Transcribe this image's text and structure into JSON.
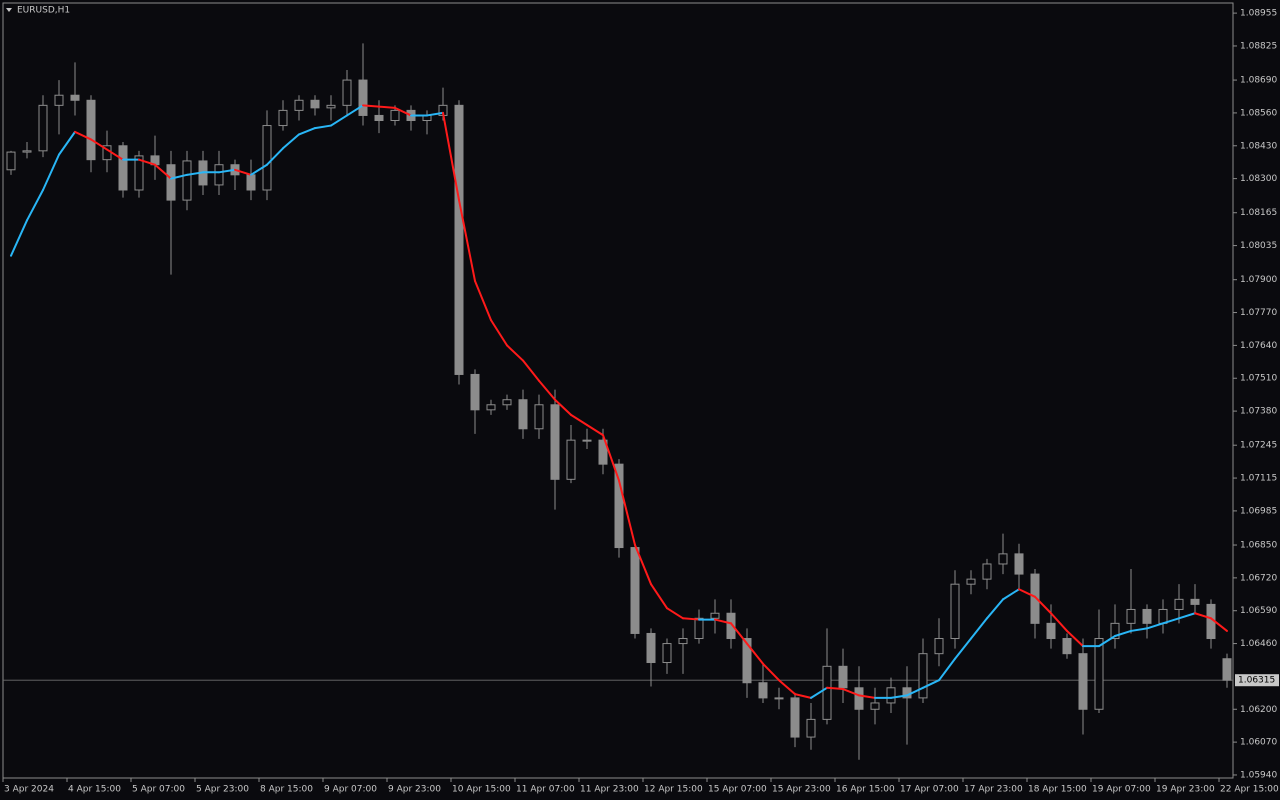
{
  "chart_data": {
    "type": "candlestick",
    "title": "EURUSD,H1",
    "categories": [
      "3 Apr 2024",
      null,
      null,
      null,
      "4 Apr 15:00",
      null,
      null,
      null,
      "5 Apr 07:00",
      null,
      null,
      null,
      "5 Apr 23:00",
      null,
      null,
      null,
      "8 Apr 15:00",
      null,
      null,
      null,
      "9 Apr 07:00",
      null,
      null,
      null,
      "9 Apr 23:00",
      null,
      null,
      null,
      "10 Apr 15:00",
      null,
      null,
      null,
      "11 Apr 07:00",
      null,
      null,
      null,
      "11 Apr 23:00",
      null,
      null,
      null,
      "12 Apr 15:00",
      null,
      null,
      null,
      "15 Apr 07:00",
      null,
      null,
      null,
      "15 Apr 23:00",
      null,
      null,
      null,
      "16 Apr 15:00",
      null,
      null,
      null,
      "17 Apr 07:00",
      null,
      null,
      null,
      "17 Apr 23:00",
      null,
      null,
      null,
      "18 Apr 15:00",
      null,
      null,
      null,
      "19 Apr 07:00",
      null,
      null,
      null,
      "19 Apr 23:00",
      null,
      null,
      null,
      "22 Apr 15:00"
    ],
    "open": [
      1.08335,
      1.08405,
      1.0841,
      1.0859,
      1.0863,
      1.0861,
      1.08375,
      1.0843,
      1.08255,
      1.0839,
      1.08355,
      1.08215,
      1.0837,
      1.08275,
      1.08355,
      1.08315,
      1.08255,
      1.0851,
      1.0857,
      1.0861,
      1.0858,
      1.0859,
      1.0869,
      1.0855,
      1.0853,
      1.0857,
      1.0853,
      1.0855,
      1.0859,
      1.07525,
      1.07385,
      1.07405,
      1.07425,
      1.0731,
      1.07405,
      1.0711,
      1.07265,
      1.07265,
      1.0717,
      1.0684,
      1.065,
      1.06385,
      1.0646,
      1.0648,
      1.0656,
      1.0658,
      1.0648,
      1.06305,
      1.06245,
      1.06245,
      1.0609,
      1.0616,
      1.0637,
      1.06285,
      1.062,
      1.06225,
      1.06285,
      1.06245,
      1.0642,
      1.0648,
      1.06695,
      1.06715,
      1.06775,
      1.06815,
      1.06735,
      1.0654,
      1.0648,
      1.0642,
      1.062,
      1.0648,
      1.0654,
      1.06595,
      1.0654,
      1.06595,
      1.06635,
      1.06615,
      1.064
    ],
    "high": [
      1.0841,
      1.08445,
      1.0863,
      1.0869,
      1.0876,
      1.0863,
      1.0849,
      1.08445,
      1.0841,
      1.0847,
      1.0841,
      1.0841,
      1.0841,
      1.0841,
      1.08375,
      1.08375,
      1.0857,
      1.0861,
      1.0863,
      1.0863,
      1.0863,
      1.0873,
      1.08835,
      1.0861,
      1.0859,
      1.0859,
      1.0857,
      1.0866,
      1.0861,
      1.07545,
      1.07425,
      1.07445,
      1.07465,
      1.07445,
      1.07465,
      1.07325,
      1.0731,
      1.0731,
      1.0719,
      1.06855,
      1.0652,
      1.0648,
      1.0652,
      1.06595,
      1.06635,
      1.06635,
      1.0652,
      1.06385,
      1.06285,
      1.06265,
      1.06225,
      1.0652,
      1.0644,
      1.0637,
      1.06285,
      1.06325,
      1.0637,
      1.0648,
      1.0656,
      1.0675,
      1.0675,
      1.06795,
      1.06895,
      1.06855,
      1.06755,
      1.06615,
      1.065,
      1.0648,
      1.06595,
      1.06615,
      1.06755,
      1.06615,
      1.06635,
      1.06695,
      1.06695,
      1.06635,
      1.0642
    ],
    "low": [
      1.08315,
      1.0838,
      1.08385,
      1.08475,
      1.0855,
      1.08325,
      1.08325,
      1.08225,
      1.08225,
      1.08295,
      1.0792,
      1.08175,
      1.08235,
      1.08235,
      1.08255,
      1.08215,
      1.08215,
      1.0849,
      1.0853,
      1.0855,
      1.0853,
      1.0855,
      1.0851,
      1.0848,
      1.0851,
      1.0849,
      1.08475,
      1.0853,
      1.07485,
      1.0729,
      1.07365,
      1.07385,
      1.0727,
      1.0727,
      1.0699,
      1.07095,
      1.0723,
      1.0713,
      1.068,
      1.0648,
      1.0629,
      1.0634,
      1.0634,
      1.0646,
      1.065,
      1.0644,
      1.06245,
      1.06225,
      1.062,
      1.0605,
      1.0604,
      1.0614,
      1.06225,
      1.06,
      1.0614,
      1.06185,
      1.0606,
      1.06225,
      1.0637,
      1.0644,
      1.06655,
      1.06675,
      1.06735,
      1.06675,
      1.0648,
      1.0644,
      1.064,
      1.061,
      1.06185,
      1.0644,
      1.065,
      1.0648,
      1.065,
      1.0654,
      1.0658,
      1.0644,
      1.06285
    ],
    "close": [
      1.08405,
      1.0841,
      1.0859,
      1.0863,
      1.0861,
      1.08375,
      1.0843,
      1.08255,
      1.0839,
      1.08355,
      1.08215,
      1.0837,
      1.08275,
      1.08355,
      1.08315,
      1.08255,
      1.0851,
      1.0857,
      1.0861,
      1.0858,
      1.0859,
      1.0869,
      1.0855,
      1.0853,
      1.0857,
      1.0853,
      1.0855,
      1.0859,
      1.07525,
      1.07385,
      1.07405,
      1.07425,
      1.0731,
      1.07405,
      1.0711,
      1.07265,
      1.07265,
      1.0717,
      1.0684,
      1.065,
      1.06385,
      1.0646,
      1.0648,
      1.0656,
      1.0658,
      1.0648,
      1.06305,
      1.06245,
      1.06245,
      1.0609,
      1.0616,
      1.0637,
      1.06285,
      1.062,
      1.06225,
      1.06285,
      1.06245,
      1.0642,
      1.0648,
      1.06695,
      1.06715,
      1.06775,
      1.06815,
      1.06735,
      1.0654,
      1.0648,
      1.0642,
      1.062,
      1.0648,
      1.0654,
      1.06595,
      1.0654,
      1.06595,
      1.06635,
      1.06615,
      1.0648,
      1.06315
    ],
    "candle_color": "#8c8c8c",
    "moving_average": {
      "values": [
        1.07995,
        1.08135,
        1.08255,
        1.08395,
        1.08485,
        1.08455,
        1.08415,
        1.08375,
        1.08375,
        1.08355,
        1.083,
        1.08315,
        1.08325,
        1.08325,
        1.08335,
        1.08315,
        1.08355,
        1.0842,
        1.08475,
        1.085,
        1.0851,
        1.0855,
        1.0859,
        1.08585,
        1.0858,
        1.0855,
        1.0855,
        1.0856,
        1.08215,
        1.07895,
        1.0774,
        1.0764,
        1.0758,
        1.075,
        1.07425,
        1.07365,
        1.07325,
        1.07285,
        1.07105,
        1.0685,
        1.06695,
        1.066,
        1.0656,
        1.06555,
        1.06555,
        1.0654,
        1.0646,
        1.0638,
        1.06315,
        1.0626,
        1.06245,
        1.06285,
        1.0628,
        1.06255,
        1.06245,
        1.06245,
        1.06255,
        1.06285,
        1.06315,
        1.064,
        1.0648,
        1.0656,
        1.06635,
        1.06675,
        1.06645,
        1.0658,
        1.0651,
        1.0645,
        1.0645,
        1.0649,
        1.0651,
        1.0652,
        1.0654,
        1.0656,
        1.0658,
        1.0656,
        1.0651
      ],
      "up_color": "#29b6f6",
      "down_color": "#ff1a1a"
    },
    "current_price": 1.06315,
    "ylim": [
      1.05928,
      1.08995
    ],
    "yticks": [
      {
        "value": 1.08955,
        "label": "1.08955"
      },
      {
        "value": 1.08825,
        "label": "1.08825"
      },
      {
        "value": 1.0869,
        "label": "1.08690"
      },
      {
        "value": 1.0856,
        "label": "1.08560"
      },
      {
        "value": 1.0843,
        "label": "1.08430"
      },
      {
        "value": 1.083,
        "label": "1.08300"
      },
      {
        "value": 1.08165,
        "label": "1.08165"
      },
      {
        "value": 1.08035,
        "label": "1.08035"
      },
      {
        "value": 1.079,
        "label": "1.07900"
      },
      {
        "value": 1.0777,
        "label": "1.07770"
      },
      {
        "value": 1.0764,
        "label": "1.07640"
      },
      {
        "value": 1.0751,
        "label": "1.07510"
      },
      {
        "value": 1.0738,
        "label": "1.07380"
      },
      {
        "value": 1.07245,
        "label": "1.07245"
      },
      {
        "value": 1.07115,
        "label": "1.07115"
      },
      {
        "value": 1.06985,
        "label": "1.06985"
      },
      {
        "value": 1.0685,
        "label": "1.06850"
      },
      {
        "value": 1.0672,
        "label": "1.06720"
      },
      {
        "value": 1.0659,
        "label": "1.06590"
      },
      {
        "value": 1.0646,
        "label": "1.06460"
      },
      {
        "value": 1.062,
        "label": "1.06200"
      },
      {
        "value": 1.0607,
        "label": "1.06070"
      },
      {
        "value": 1.0594,
        "label": "1.05940"
      }
    ],
    "grid": false
  }
}
